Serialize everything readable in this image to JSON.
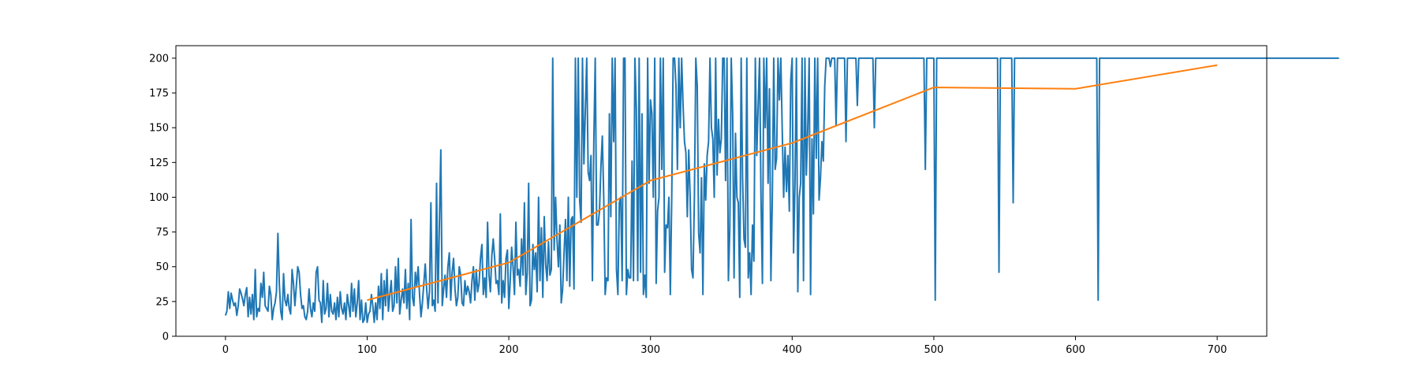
{
  "chart_data": {
    "type": "line",
    "title": "",
    "xlabel": "",
    "ylabel": "",
    "xlim": [
      -35,
      735
    ],
    "ylim": [
      0,
      209
    ],
    "xticks": [
      0,
      100,
      200,
      300,
      400,
      500,
      600,
      700
    ],
    "yticks": [
      0,
      25,
      50,
      75,
      100,
      125,
      150,
      175,
      200
    ],
    "grid": false,
    "legend": "none",
    "series": [
      {
        "color": "#1f77b4",
        "x_start": 0,
        "x_step": 1,
        "values": [
          15,
          18,
          32,
          20,
          31,
          26,
          22,
          24,
          15,
          22,
          34,
          31,
          27,
          22,
          30,
          35,
          14,
          28,
          16,
          30,
          12,
          48,
          14,
          20,
          18,
          38,
          28,
          46,
          22,
          20,
          18,
          36,
          30,
          12,
          20,
          24,
          32,
          74,
          38,
          18,
          12,
          45,
          26,
          22,
          30,
          20,
          16,
          48,
          38,
          22,
          36,
          50,
          46,
          30,
          20,
          22,
          14,
          12,
          18,
          34,
          20,
          14,
          24,
          18,
          46,
          50,
          26,
          24,
          10,
          40,
          16,
          20,
          38,
          14,
          30,
          18,
          16,
          24,
          12,
          28,
          14,
          32,
          20,
          16,
          24,
          12,
          30,
          22,
          14,
          38,
          18,
          34,
          14,
          24,
          40,
          12,
          26,
          10,
          12,
          24,
          10,
          16,
          18,
          30,
          22,
          10,
          24,
          12,
          36,
          20,
          45,
          12,
          40,
          22,
          48,
          18,
          30,
          40,
          18,
          22,
          50,
          24,
          56,
          16,
          26,
          34,
          24,
          48,
          20,
          38,
          12,
          84,
          28,
          22,
          46,
          36,
          50,
          30,
          14,
          24,
          38,
          52,
          34,
          20,
          32,
          96,
          22,
          26,
          18,
          110,
          24,
          82,
          134,
          22,
          34,
          44,
          28,
          50,
          60,
          26,
          46,
          56,
          34,
          22,
          28,
          50,
          44,
          24,
          22,
          40,
          30,
          36,
          32,
          24,
          40,
          50,
          26,
          48,
          32,
          38,
          56,
          66,
          30,
          42,
          28,
          82,
          44,
          32,
          58,
          70,
          56,
          38,
          40,
          30,
          88,
          24,
          40,
          28,
          56,
          62,
          20,
          40,
          64,
          50,
          30,
          82,
          44,
          48,
          36,
          70,
          44,
          96,
          30,
          46,
          110,
          22,
          26,
          66,
          48,
          60,
          32,
          100,
          40,
          78,
          28,
          86,
          52,
          40,
          68,
          44,
          48,
          200,
          62,
          100,
          70,
          50,
          80,
          24,
          34,
          60,
          84,
          40,
          100,
          36,
          84,
          86,
          34,
          200,
          100,
          200,
          98,
          82,
          200,
          124,
          162,
          200,
          118,
          112,
          130,
          40,
          140,
          200,
          80,
          80,
          90,
          122,
          144,
          100,
          30,
          42,
          40,
          160,
          86,
          200,
          140,
          200,
          48,
          30,
          96,
          100,
          40,
          200,
          200,
          30,
          48,
          42,
          42,
          126,
          40,
          200,
          164,
          40,
          200,
          46,
          160,
          30,
          44,
          28,
          200,
          110,
          170,
          160,
          100,
          200,
          38,
          90,
          100,
          200,
          120,
          200,
          46,
          80,
          78,
          100,
          30,
          100,
          200,
          200,
          180,
          120,
          200,
          150,
          200,
          166,
          140,
          132,
          86,
          134,
          100,
          48,
          42,
          100,
          200,
          180,
          74,
          60,
          114,
          30,
          124,
          98,
          130,
          140,
          200,
          150,
          142,
          100,
          200,
          116,
          156,
          132,
          142,
          200,
          200,
          112,
          200,
          40,
          78,
          200,
          160,
          42,
          146,
          100,
          96,
          28,
          200,
          114,
          70,
          64,
          200,
          42,
          60,
          30,
          80,
          54,
          200,
          130,
          166,
          200,
          100,
          38,
          200,
          150,
          200,
          110,
          178,
          40,
          100,
          200,
          120,
          128,
          200,
          170,
          200,
          148,
          100,
          136,
          104,
          130,
          90,
          184,
          200,
          60,
          110,
          200,
          32,
          100,
          110,
          200,
          40,
          200,
          116,
          150,
          200,
          30,
          142,
          88,
          200,
          128,
          200,
          98,
          114,
          140,
          126,
          180,
          200,
          200,
          200,
          194,
          200,
          200,
          200,
          152,
          200,
          200,
          200,
          200,
          200,
          200,
          140,
          200,
          200,
          200,
          200,
          200,
          200,
          200,
          166,
          200,
          200,
          200,
          200,
          200,
          200,
          200,
          200,
          200,
          200,
          200,
          150,
          200,
          200,
          200,
          200,
          200,
          200,
          200,
          200,
          200,
          200,
          200,
          200,
          200,
          200,
          200,
          200,
          200,
          200,
          200,
          200,
          200,
          200,
          200,
          200,
          200,
          200,
          200,
          200,
          200,
          200,
          200,
          200,
          200,
          200,
          200,
          120,
          200,
          200,
          200,
          200,
          200,
          200,
          26,
          200,
          200,
          200,
          200,
          200,
          200,
          200,
          200,
          200,
          200,
          200,
          200,
          200,
          200,
          200,
          200,
          200,
          200,
          200,
          200,
          200,
          200,
          200,
          200,
          200,
          200,
          200,
          200,
          200,
          200,
          200,
          200,
          200,
          200,
          200,
          200,
          200,
          200,
          200,
          200,
          200,
          200,
          200,
          200,
          46,
          200,
          200,
          200,
          200,
          200,
          200,
          200,
          200,
          200,
          96,
          200,
          200,
          200,
          200,
          200,
          200,
          200,
          200,
          200,
          200,
          200,
          200,
          200,
          200,
          200,
          200,
          200,
          200,
          200,
          200,
          200,
          200,
          200,
          200,
          200,
          200,
          200,
          200,
          200,
          200,
          200,
          200,
          200,
          200,
          200,
          200,
          200,
          200,
          200,
          200,
          200,
          200,
          200,
          200,
          200,
          200,
          200,
          200,
          200,
          200,
          200,
          200,
          200,
          200,
          200,
          200,
          200,
          200,
          200,
          26,
          200,
          200,
          200,
          200,
          200,
          200,
          200,
          200,
          200,
          200,
          200,
          200,
          200,
          200,
          200,
          200,
          200,
          200,
          200,
          200,
          200,
          200,
          200,
          200,
          200,
          200,
          200,
          200,
          200,
          200,
          200,
          200,
          200,
          200,
          200,
          200,
          200,
          200,
          200,
          200,
          200,
          200,
          200,
          200,
          200,
          200,
          200,
          200,
          200,
          200,
          200,
          200,
          200,
          200,
          200,
          200,
          200,
          200,
          200,
          200,
          200,
          200,
          200,
          200,
          200,
          200,
          200,
          200,
          200,
          200,
          200,
          200,
          200,
          200,
          200,
          200,
          200,
          200,
          200,
          200,
          200,
          200,
          200,
          200,
          200,
          200,
          200,
          200,
          200,
          200,
          200,
          200,
          200,
          200,
          200,
          200,
          200,
          200,
          200,
          200,
          200,
          200,
          200,
          200,
          200,
          200,
          200,
          200,
          200,
          200,
          200,
          200,
          200,
          200,
          200,
          200,
          200,
          200,
          200,
          200,
          200,
          200,
          200,
          200,
          200,
          200,
          200,
          200,
          200,
          200,
          200,
          200,
          200,
          200,
          200,
          200,
          200,
          200,
          200,
          200,
          200,
          200,
          200,
          200,
          200,
          200,
          200,
          200,
          200,
          200,
          200,
          200,
          200,
          200,
          200,
          200,
          200,
          200,
          200,
          200,
          200,
          200,
          200,
          200,
          200,
          200,
          200,
          200,
          200,
          200
        ]
      },
      {
        "color": "#ff7f0e",
        "x": [
          100,
          200,
          300,
          400,
          500,
          600,
          700
        ],
        "values": [
          26,
          53,
          112,
          139,
          179,
          178,
          195
        ]
      }
    ]
  }
}
